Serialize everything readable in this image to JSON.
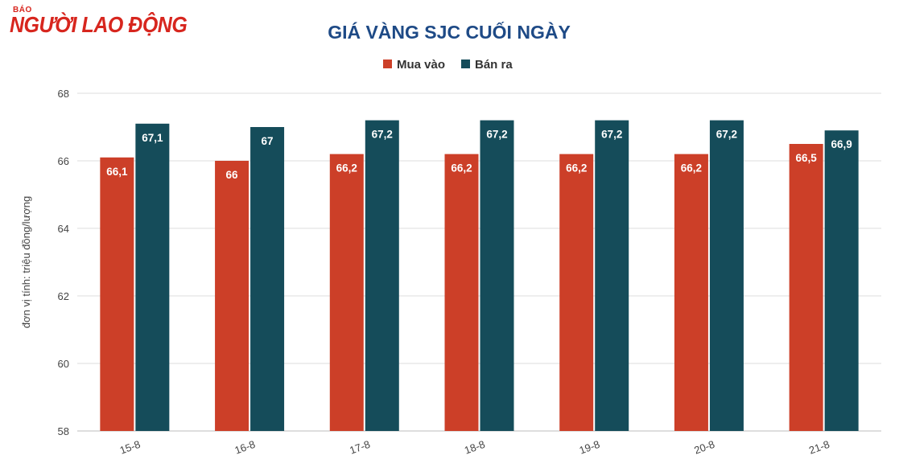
{
  "brand": {
    "logo_small": "BÁO",
    "logo_big": "NGƯỜI LAO ĐỘNG",
    "color": "#d7261e"
  },
  "chart_data": {
    "type": "bar",
    "title": "GIÁ VÀNG SJC CUỐI NGÀY",
    "ylabel": "đơn vị tính: triệu đồng/lượng",
    "xlabel": "",
    "categories": [
      "15-8",
      "16-8",
      "17-8",
      "18-8",
      "19-8",
      "20-8",
      "21-8"
    ],
    "series": [
      {
        "name": "Mua vào",
        "color": "#cc3f28",
        "values": [
          66.1,
          66,
          66.2,
          66.2,
          66.2,
          66.2,
          66.5
        ],
        "labels": [
          "66,1",
          "66",
          "66,2",
          "66,2",
          "66,2",
          "66,2",
          "66,5"
        ]
      },
      {
        "name": "Bán ra",
        "color": "#154c5a",
        "values": [
          67.1,
          67,
          67.2,
          67.2,
          67.2,
          67.2,
          66.9
        ],
        "labels": [
          "67,1",
          "67",
          "67,2",
          "67,2",
          "67,2",
          "67,2",
          "66,9"
        ]
      }
    ],
    "ylim": [
      58,
      68
    ],
    "yticks": [
      58,
      60,
      62,
      64,
      66,
      68
    ],
    "grid": true,
    "legend_position": "top-center",
    "title_color": "#1e4a86"
  }
}
